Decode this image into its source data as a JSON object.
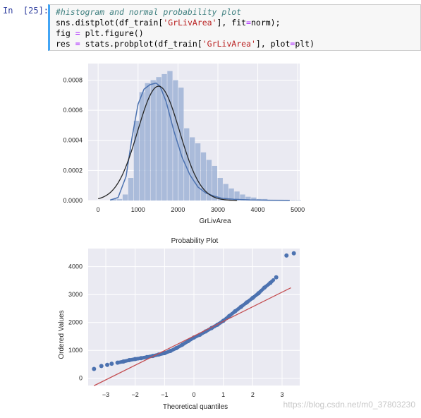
{
  "cell": {
    "prompt": "In  [25]:",
    "lines": [
      {
        "parts": [
          {
            "t": "#histogram and normal probability plot",
            "c": "kw-comment"
          }
        ]
      },
      {
        "parts": [
          {
            "t": "sns.distplot(df_train[",
            "c": ""
          },
          {
            "t": "'GrLivArea'",
            "c": "tok-str"
          },
          {
            "t": "], fit",
            "c": ""
          },
          {
            "t": "=",
            "c": "tok-op"
          },
          {
            "t": "norm);",
            "c": ""
          }
        ]
      },
      {
        "parts": [
          {
            "t": "fig ",
            "c": ""
          },
          {
            "t": "=",
            "c": "tok-op"
          },
          {
            "t": " plt.figure()",
            "c": ""
          }
        ]
      },
      {
        "parts": [
          {
            "t": "res ",
            "c": ""
          },
          {
            "t": "=",
            "c": "tok-op"
          },
          {
            "t": " stats.probplot(df_train[",
            "c": ""
          },
          {
            "t": "'GrLivArea'",
            "c": "tok-str"
          },
          {
            "t": "], plot",
            "c": ""
          },
          {
            "t": "=",
            "c": "tok-op"
          },
          {
            "t": "plt)",
            "c": ""
          }
        ]
      }
    ]
  },
  "watermark": "https://blog.csdn.net/m0_37803230",
  "chart_data": [
    {
      "type": "bar",
      "title": "",
      "xlabel": "GrLivArea",
      "ylabel": "",
      "xlim": [
        -250,
        5050
      ],
      "ylim": [
        0,
        0.00091
      ],
      "xticks": [
        0,
        1000,
        2000,
        3000,
        4000,
        5000
      ],
      "yticks": [
        0.0,
        0.0002,
        0.0004,
        0.0006,
        0.0008
      ],
      "ytick_labels": [
        "0.0000",
        "0.0002",
        "0.0004",
        "0.0006",
        "0.0008"
      ],
      "grid": true,
      "bin_width": 140,
      "bins_start": 334,
      "hist_values": [
        1e-05,
        1e-05,
        4e-05,
        0.00015,
        0.00053,
        0.00072,
        0.00078,
        0.0008,
        0.00082,
        0.00084,
        0.00086,
        0.0008,
        0.00075,
        0.00048,
        0.00042,
        0.00038,
        0.00032,
        0.00027,
        0.00023,
        0.00015,
        0.00011,
        8e-05,
        6e-05,
        4e-05,
        2.5e-05,
        2e-05,
        1e-05,
        1e-05,
        5e-06,
        5e-06,
        5e-06,
        5e-06,
        3e-06,
        3e-06
      ],
      "kde": {
        "x": [
          300,
          500,
          700,
          850,
          1000,
          1150,
          1300,
          1450,
          1550,
          1700,
          1900,
          2100,
          2300,
          2500,
          2700,
          2900,
          3100,
          3400,
          3800,
          4300,
          4800
        ],
        "y": [
          3e-06,
          2e-05,
          0.00016,
          0.00042,
          0.00064,
          0.00074,
          0.00077,
          0.00078,
          0.00076,
          0.00066,
          0.00046,
          0.00029,
          0.00017,
          9e-05,
          5e-05,
          3e-05,
          1.5e-05,
          8e-06,
          4e-06,
          2e-06,
          1e-06
        ]
      },
      "normal_fit": {
        "mean": 1515,
        "std": 525
      }
    },
    {
      "type": "scatter",
      "title": "Probability Plot",
      "xlabel": "Theoretical quantiles",
      "ylabel": "Ordered Values",
      "xlim": [
        -3.6,
        3.6
      ],
      "ylim": [
        -260,
        4650
      ],
      "xticks": [
        -3,
        -2,
        -1,
        0,
        1,
        2,
        3
      ],
      "yticks": [
        0,
        1000,
        2000,
        3000,
        4000
      ],
      "grid": true,
      "fit_line": {
        "slope": 524,
        "intercept": 1515
      },
      "points": [
        [
          -3.4,
          334
        ],
        [
          -3.15,
          438
        ],
        [
          -2.95,
          480
        ],
        [
          -2.8,
          520
        ],
        [
          -2.6,
          560
        ],
        [
          -2.4,
          600
        ],
        [
          -2.2,
          650
        ],
        [
          -2.0,
          690
        ],
        [
          -1.8,
          720
        ],
        [
          -1.6,
          760
        ],
        [
          -1.4,
          800
        ],
        [
          -1.2,
          850
        ],
        [
          -1.0,
          900
        ],
        [
          -0.8,
          980
        ],
        [
          -0.6,
          1080
        ],
        [
          -0.4,
          1200
        ],
        [
          -0.2,
          1330
        ],
        [
          0.0,
          1460
        ],
        [
          0.2,
          1560
        ],
        [
          0.4,
          1680
        ],
        [
          0.6,
          1800
        ],
        [
          0.8,
          1920
        ],
        [
          1.0,
          2060
        ],
        [
          1.2,
          2230
        ],
        [
          1.4,
          2400
        ],
        [
          1.6,
          2560
        ],
        [
          1.8,
          2720
        ],
        [
          2.0,
          2880
        ],
        [
          2.2,
          3050
        ],
        [
          2.4,
          3250
        ],
        [
          2.6,
          3420
        ],
        [
          2.8,
          3620
        ],
        [
          3.15,
          4400
        ],
        [
          3.4,
          4480
        ]
      ]
    }
  ]
}
